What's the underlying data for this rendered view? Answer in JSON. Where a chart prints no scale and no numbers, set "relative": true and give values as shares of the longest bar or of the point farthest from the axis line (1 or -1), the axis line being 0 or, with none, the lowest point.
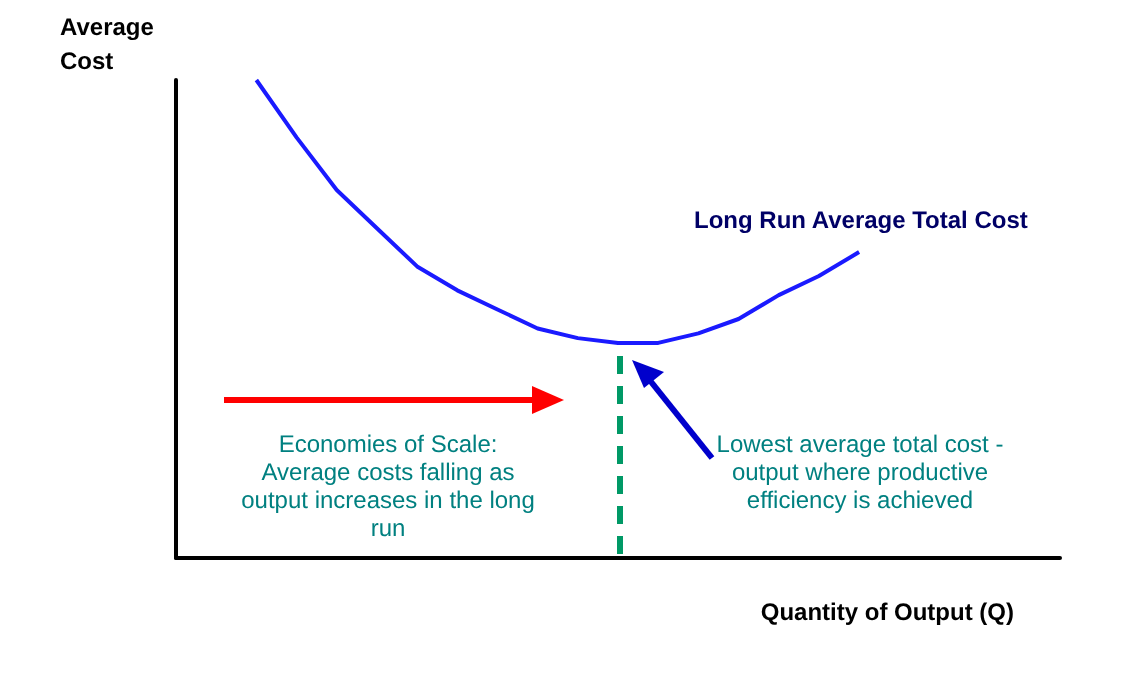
{
  "chart_data": {
    "type": "line",
    "relative": true,
    "ylabel": "Average\nCost",
    "xlabel": "Quantity of Output (Q)",
    "categories": [
      null,
      null,
      null,
      null,
      null,
      null,
      null,
      null,
      null,
      null,
      null,
      null,
      null,
      null,
      null,
      null,
      null,
      null,
      null,
      null,
      null,
      null,
      null
    ],
    "series": [
      {
        "color": "#1a1aff",
        "values": [
          null,
          null,
          1,
          0.88,
          0.77,
          0.69,
          0.61,
          0.56,
          0.52,
          0.48,
          0.46,
          0.45,
          0.45,
          0.47,
          0.5,
          0.55,
          0.59,
          0.64,
          null,
          null,
          null,
          null,
          null
        ]
      }
    ],
    "annotations": [
      "Long Run Average Total Cost",
      "Economies of Scale:\nAverage costs falling as\noutput increases in the long\nrun",
      "Lowest average total cost -\noutput where productive\nefficiency is achieved"
    ],
    "grid": false,
    "marker": "none",
    "line_style": "solid"
  }
}
